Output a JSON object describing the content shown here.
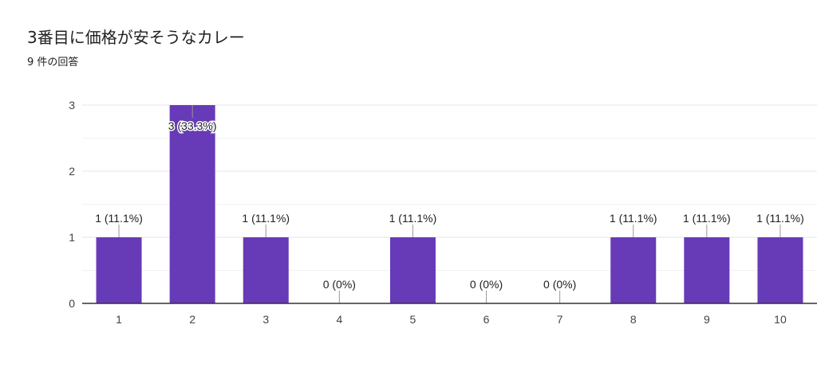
{
  "header": {
    "title": "3番目に価格が安そうなカレー",
    "subtitle": "9 件の回答"
  },
  "colors": {
    "bar": "#673ab7",
    "grid": "#ebebeb",
    "axis": "#333333",
    "text": "#202124"
  },
  "chart_data": {
    "type": "bar",
    "title": "3番目に価格が安そうなカレー",
    "xlabel": "",
    "ylabel": "",
    "categories": [
      "1",
      "2",
      "3",
      "4",
      "5",
      "6",
      "7",
      "8",
      "9",
      "10"
    ],
    "values": [
      1,
      3,
      1,
      0,
      1,
      0,
      0,
      1,
      1,
      1
    ],
    "labels": [
      "1 (11.1%)",
      "3 (33.3%)",
      "1 (11.1%)",
      "0 (0%)",
      "1 (11.1%)",
      "0 (0%)",
      "0 (0%)",
      "1 (11.1%)",
      "1 (11.1%)",
      "1 (11.1%)"
    ],
    "yticks": [
      0,
      1,
      2,
      3
    ],
    "ylim": [
      0,
      3
    ],
    "grid": true
  }
}
